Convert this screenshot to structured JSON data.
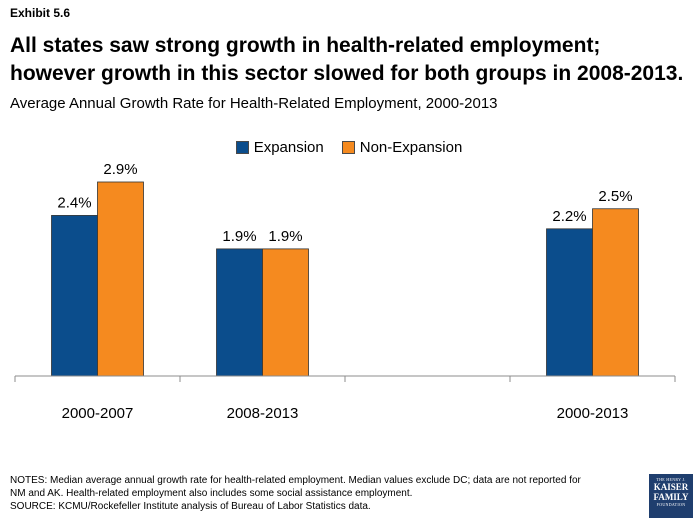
{
  "exhibit": "Exhibit 5.6",
  "headline": "All states saw strong growth in health-related employment; however growth in this sector slowed for both groups in 2008-2013.",
  "notes": {
    "line1": "NOTES: Median average annual growth rate for health-related employment. Median values exclude DC; data are not reported for",
    "line2": "NM and AK. Health-related employment also includes some social assistance employment.",
    "line3": "SOURCE: KCMU/Rockefeller Institute analysis of Bureau of Labor Statistics data."
  },
  "logo": {
    "line1": "THE HENRY J.",
    "line2": "KAISER",
    "line3": "FAMILY",
    "line4": "FOUNDATION"
  },
  "colors": {
    "expansion": "#0b4d8c",
    "non_expansion": "#f58a1f"
  },
  "chart_data": {
    "type": "bar",
    "title": "Average Annual Growth Rate for Health-Related Employment, 2000-2013",
    "categories": [
      "2000-2007",
      "2008-2013",
      "",
      "2000-2013"
    ],
    "series": [
      {
        "name": "Expansion",
        "values": [
          2.4,
          1.9,
          null,
          2.2
        ],
        "labels": [
          "2.4%",
          "1.9%",
          "",
          "2.2%"
        ]
      },
      {
        "name": "Non-Expansion",
        "values": [
          2.9,
          1.9,
          null,
          2.5
        ],
        "labels": [
          "2.9%",
          "1.9%",
          "",
          "2.5%"
        ]
      }
    ],
    "ylim": [
      0,
      3.5
    ],
    "legend": "top-center",
    "grid": false
  }
}
